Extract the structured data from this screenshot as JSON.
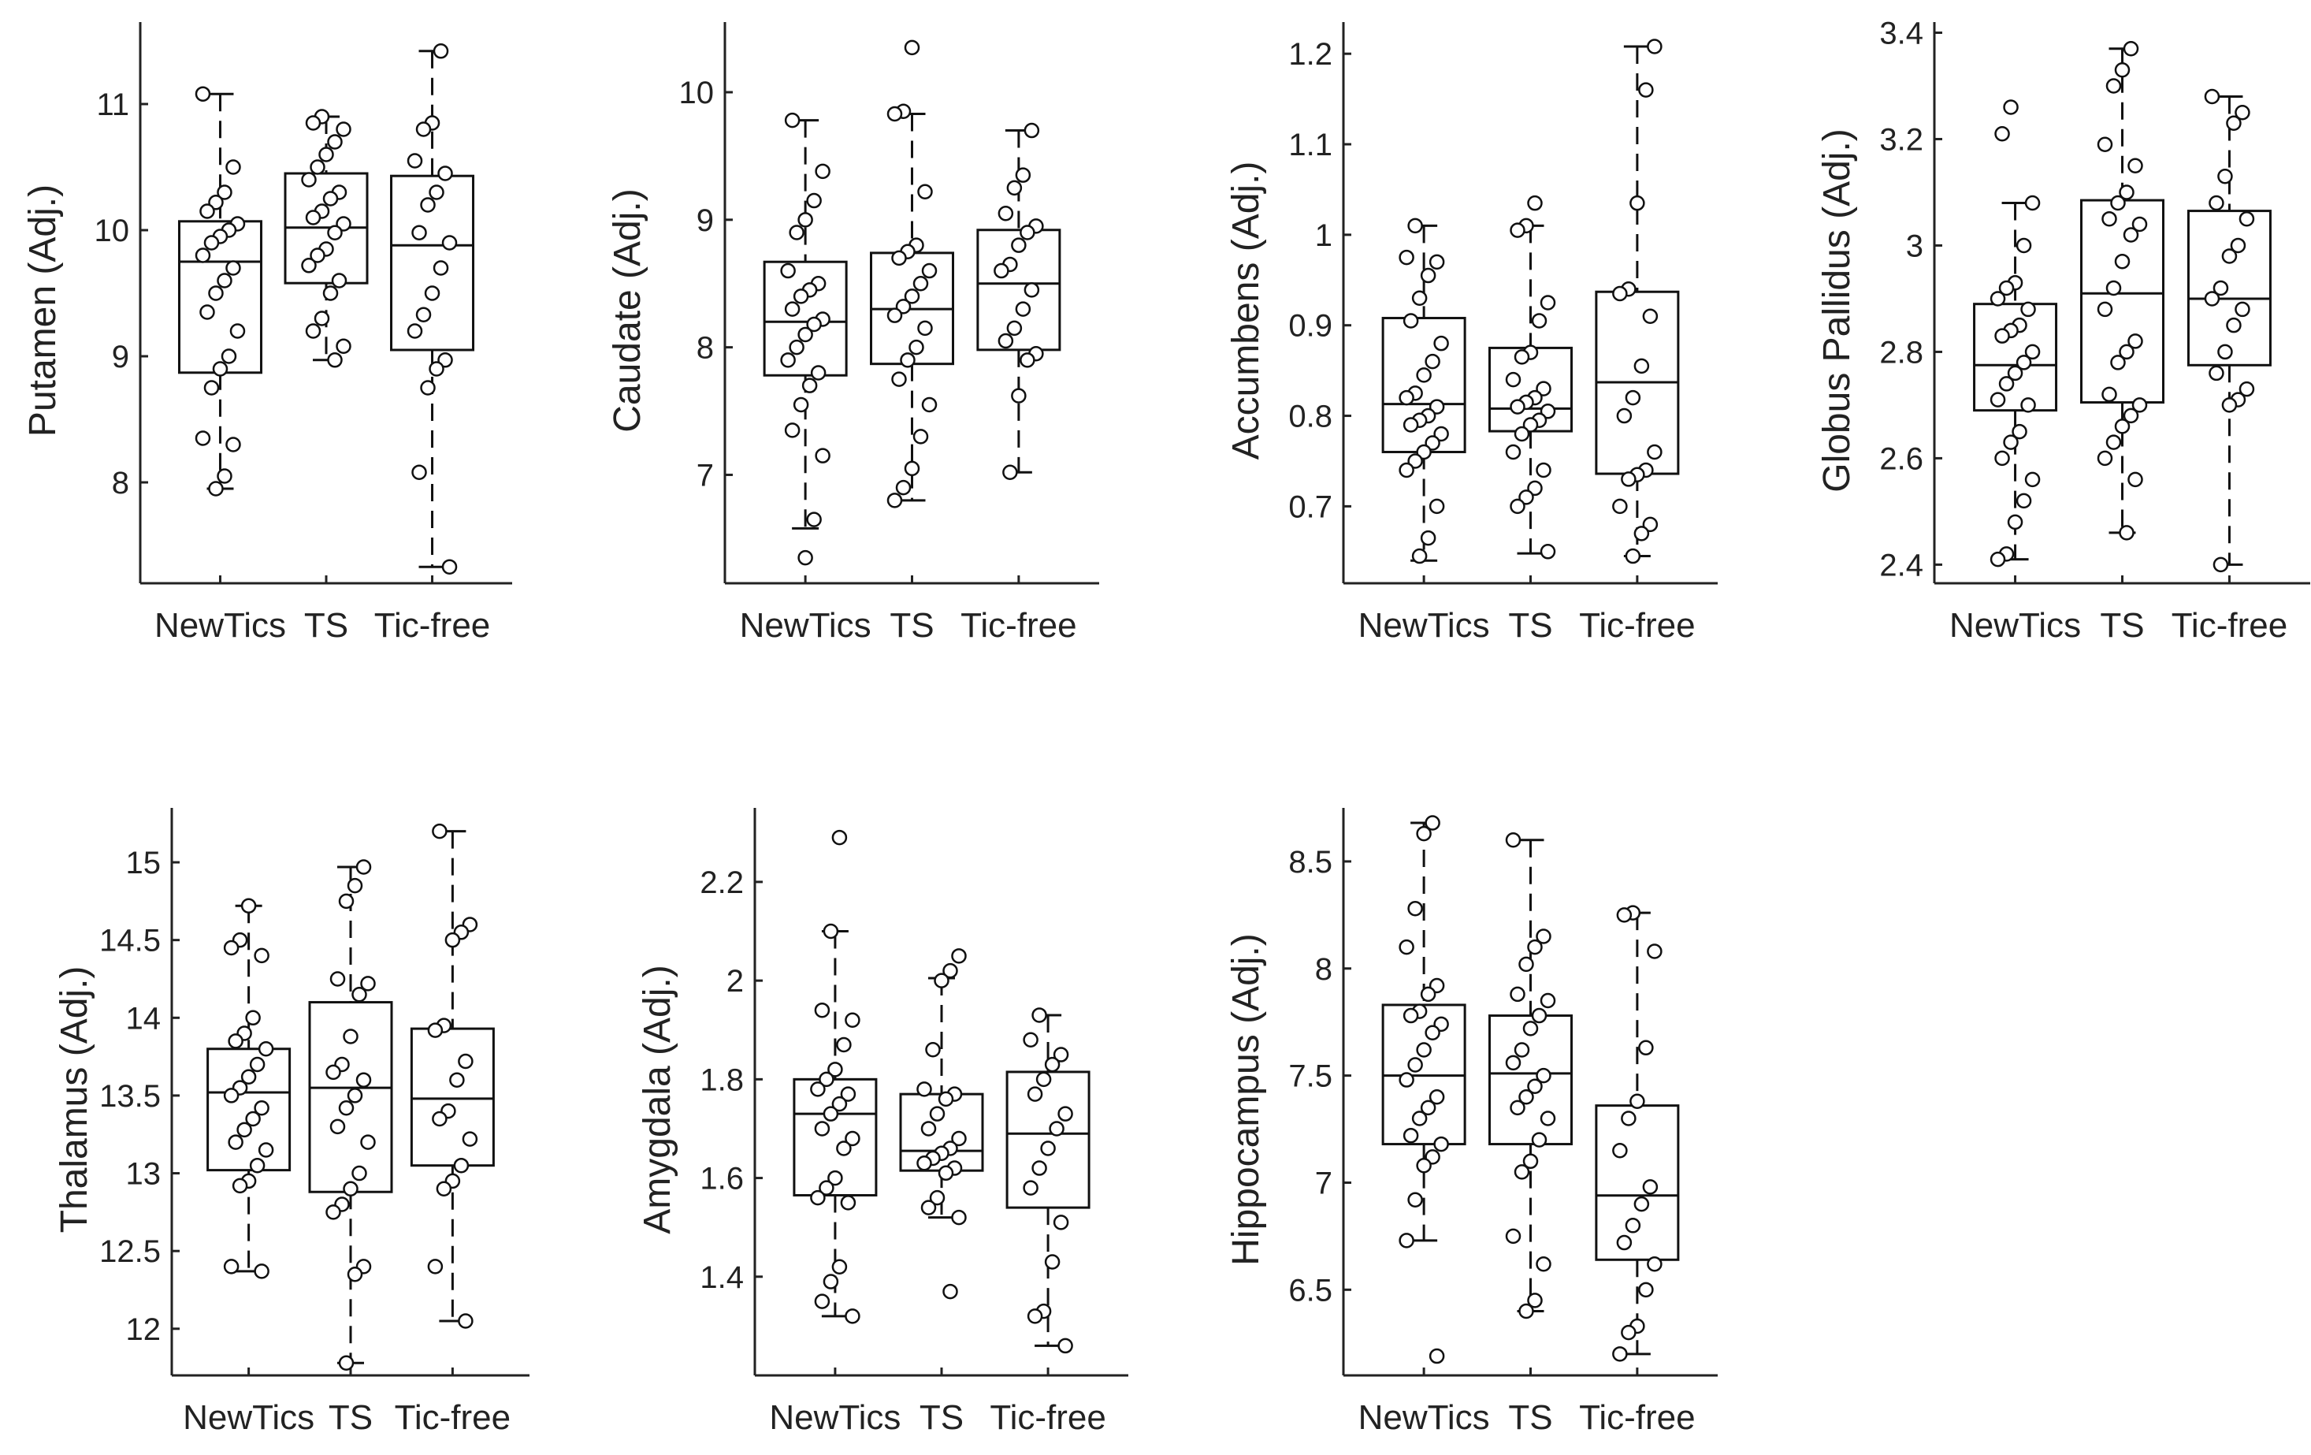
{
  "chart_data": [
    {
      "type": "box",
      "ylabel": "Putamen (Adj.)",
      "categories": [
        "NewTics",
        "TS",
        "Tic-free"
      ],
      "yticks": [
        8,
        9,
        10,
        11
      ],
      "ylim": [
        7.2,
        11.65
      ],
      "boxes": [
        {
          "group": "NewTics",
          "whisker_low": 7.95,
          "q1": 8.87,
          "median": 9.75,
          "q3": 10.07,
          "whisker_high": 11.08,
          "points": [
            11.08,
            10.5,
            10.3,
            10.22,
            10.15,
            10.05,
            10.0,
            9.95,
            9.9,
            9.8,
            9.7,
            9.6,
            9.5,
            9.35,
            9.2,
            9.0,
            8.9,
            8.75,
            8.35,
            8.3,
            8.05,
            7.95
          ]
        },
        {
          "group": "TS",
          "whisker_low": 8.97,
          "q1": 9.58,
          "median": 10.02,
          "q3": 10.45,
          "whisker_high": 10.9,
          "points": [
            10.9,
            10.85,
            10.8,
            10.7,
            10.6,
            10.5,
            10.4,
            10.3,
            10.25,
            10.15,
            10.1,
            10.05,
            9.98,
            9.85,
            9.8,
            9.72,
            9.6,
            9.5,
            9.3,
            9.2,
            9.08,
            8.97
          ]
        },
        {
          "group": "Tic-free",
          "whisker_low": 7.33,
          "q1": 9.05,
          "median": 9.88,
          "q3": 10.43,
          "whisker_high": 11.42,
          "points": [
            11.42,
            10.85,
            10.8,
            10.55,
            10.45,
            10.3,
            10.2,
            9.98,
            9.9,
            9.7,
            9.5,
            9.33,
            9.2,
            8.97,
            8.9,
            8.75,
            8.08,
            7.33
          ]
        }
      ]
    },
    {
      "type": "box",
      "ylabel": "Caudate (Adj.)",
      "categories": [
        "NewTics",
        "TS",
        "Tic-free"
      ],
      "yticks": [
        7,
        8,
        9,
        10
      ],
      "ylim": [
        6.15,
        10.55
      ],
      "boxes": [
        {
          "group": "NewTics",
          "whisker_low": 6.58,
          "q1": 7.78,
          "median": 8.2,
          "q3": 8.67,
          "whisker_high": 9.78,
          "points": [
            9.78,
            9.38,
            9.15,
            9.0,
            8.9,
            8.6,
            8.5,
            8.45,
            8.4,
            8.3,
            8.22,
            8.18,
            8.1,
            8.0,
            7.9,
            7.8,
            7.7,
            7.55,
            7.35,
            7.15,
            6.65,
            6.35
          ]
        },
        {
          "group": "TS",
          "whisker_low": 6.8,
          "q1": 7.87,
          "median": 8.3,
          "q3": 8.74,
          "whisker_high": 9.83,
          "points": [
            10.35,
            9.85,
            9.83,
            9.22,
            8.8,
            8.75,
            8.7,
            8.6,
            8.5,
            8.4,
            8.32,
            8.25,
            8.15,
            8.0,
            7.9,
            7.75,
            7.55,
            7.3,
            7.05,
            6.9,
            6.8
          ]
        },
        {
          "group": "Tic-free",
          "whisker_low": 7.02,
          "q1": 7.98,
          "median": 8.5,
          "q3": 8.92,
          "whisker_high": 9.7,
          "points": [
            9.7,
            9.35,
            9.25,
            9.05,
            8.95,
            8.9,
            8.8,
            8.65,
            8.6,
            8.45,
            8.3,
            8.15,
            8.05,
            7.95,
            7.9,
            7.62,
            7.02
          ]
        }
      ]
    },
    {
      "type": "box",
      "ylabel": "Accumbens (Adj.)",
      "categories": [
        "NewTics",
        "TS",
        "Tic-free"
      ],
      "yticks": [
        0.7,
        0.8,
        0.9,
        1,
        1.1,
        1.2
      ],
      "ylim": [
        0.615,
        1.235
      ],
      "boxes": [
        {
          "group": "NewTics",
          "whisker_low": 0.64,
          "q1": 0.76,
          "median": 0.813,
          "q3": 0.908,
          "whisker_high": 1.01,
          "points": [
            1.01,
            0.975,
            0.97,
            0.955,
            0.93,
            0.905,
            0.88,
            0.86,
            0.845,
            0.825,
            0.82,
            0.81,
            0.8,
            0.795,
            0.79,
            0.78,
            0.77,
            0.76,
            0.75,
            0.74,
            0.7,
            0.665,
            0.645
          ]
        },
        {
          "group": "TS",
          "whisker_low": 0.648,
          "q1": 0.783,
          "median": 0.808,
          "q3": 0.875,
          "whisker_high": 1.01,
          "points": [
            1.035,
            1.01,
            1.005,
            0.925,
            0.905,
            0.87,
            0.865,
            0.84,
            0.83,
            0.82,
            0.815,
            0.81,
            0.805,
            0.795,
            0.79,
            0.78,
            0.76,
            0.74,
            0.72,
            0.71,
            0.7,
            0.65
          ]
        },
        {
          "group": "Tic-free",
          "whisker_low": 0.645,
          "q1": 0.736,
          "median": 0.837,
          "q3": 0.937,
          "whisker_high": 1.208,
          "points": [
            1.208,
            1.16,
            1.035,
            0.94,
            0.935,
            0.91,
            0.855,
            0.82,
            0.8,
            0.76,
            0.74,
            0.735,
            0.73,
            0.7,
            0.68,
            0.67,
            0.645
          ]
        }
      ]
    },
    {
      "type": "box",
      "ylabel": "Globus Pallidus (Adj.)",
      "categories": [
        "NewTics",
        "TS",
        "Tic-free"
      ],
      "yticks": [
        2.4,
        2.6,
        2.8,
        3,
        3.2,
        3.4
      ],
      "ylim": [
        2.365,
        3.42
      ],
      "boxes": [
        {
          "group": "NewTics",
          "whisker_low": 2.41,
          "q1": 2.69,
          "median": 2.775,
          "q3": 2.89,
          "whisker_high": 3.08,
          "points": [
            3.26,
            3.21,
            3.08,
            3.0,
            2.93,
            2.92,
            2.9,
            2.88,
            2.85,
            2.84,
            2.83,
            2.8,
            2.78,
            2.76,
            2.74,
            2.71,
            2.7,
            2.65,
            2.63,
            2.6,
            2.56,
            2.52,
            2.48,
            2.42,
            2.41
          ]
        },
        {
          "group": "TS",
          "whisker_low": 2.46,
          "q1": 2.705,
          "median": 2.91,
          "q3": 3.085,
          "whisker_high": 3.37,
          "points": [
            3.37,
            3.33,
            3.3,
            3.19,
            3.15,
            3.1,
            3.08,
            3.05,
            3.04,
            3.02,
            2.97,
            2.92,
            2.88,
            2.82,
            2.8,
            2.78,
            2.72,
            2.7,
            2.68,
            2.66,
            2.63,
            2.6,
            2.56,
            2.46
          ]
        },
        {
          "group": "Tic-free",
          "whisker_low": 2.4,
          "q1": 2.775,
          "median": 2.9,
          "q3": 3.065,
          "whisker_high": 3.28,
          "points": [
            3.28,
            3.25,
            3.23,
            3.13,
            3.08,
            3.05,
            3.0,
            2.98,
            2.92,
            2.9,
            2.88,
            2.85,
            2.8,
            2.76,
            2.73,
            2.71,
            2.7,
            2.4
          ]
        }
      ]
    },
    {
      "type": "box",
      "ylabel": "Thalamus (Adj.)",
      "categories": [
        "NewTics",
        "TS",
        "Tic-free"
      ],
      "yticks": [
        12,
        12.5,
        13,
        13.5,
        14,
        14.5,
        15
      ],
      "ylim": [
        11.7,
        15.35
      ],
      "boxes": [
        {
          "group": "NewTics",
          "whisker_low": 12.37,
          "q1": 13.02,
          "median": 13.52,
          "q3": 13.8,
          "whisker_high": 14.72,
          "points": [
            14.72,
            14.5,
            14.45,
            14.4,
            14.0,
            13.9,
            13.85,
            13.8,
            13.7,
            13.62,
            13.55,
            13.5,
            13.42,
            13.35,
            13.28,
            13.2,
            13.15,
            13.05,
            12.95,
            12.92,
            12.4,
            12.37
          ]
        },
        {
          "group": "TS",
          "whisker_low": 11.78,
          "q1": 12.88,
          "median": 13.55,
          "q3": 14.1,
          "whisker_high": 14.97,
          "points": [
            14.97,
            14.85,
            14.75,
            14.25,
            14.22,
            14.15,
            13.88,
            13.7,
            13.65,
            13.6,
            13.5,
            13.42,
            13.3,
            13.2,
            13.0,
            12.9,
            12.8,
            12.75,
            12.4,
            12.35,
            11.78
          ]
        },
        {
          "group": "Tic-free",
          "whisker_low": 12.05,
          "q1": 13.05,
          "median": 13.48,
          "q3": 13.93,
          "whisker_high": 15.2,
          "points": [
            15.2,
            14.6,
            14.55,
            14.5,
            13.95,
            13.92,
            13.72,
            13.6,
            13.4,
            13.35,
            13.22,
            13.05,
            12.95,
            12.9,
            12.4,
            12.05
          ]
        }
      ]
    },
    {
      "type": "box",
      "ylabel": "Amygdala (Adj.)",
      "categories": [
        "NewTics",
        "TS",
        "Tic-free"
      ],
      "yticks": [
        1.4,
        1.6,
        1.8,
        2,
        2.2
      ],
      "ylim": [
        1.2,
        2.35
      ],
      "boxes": [
        {
          "group": "NewTics",
          "whisker_low": 1.32,
          "q1": 1.565,
          "median": 1.73,
          "q3": 1.8,
          "whisker_high": 2.1,
          "points": [
            2.29,
            2.1,
            1.94,
            1.92,
            1.87,
            1.82,
            1.8,
            1.78,
            1.77,
            1.75,
            1.73,
            1.7,
            1.68,
            1.66,
            1.6,
            1.58,
            1.56,
            1.55,
            1.42,
            1.39,
            1.35,
            1.32
          ]
        },
        {
          "group": "TS",
          "whisker_low": 1.52,
          "q1": 1.615,
          "median": 1.655,
          "q3": 1.77,
          "whisker_high": 2.005,
          "points": [
            2.05,
            2.02,
            2.0,
            1.86,
            1.78,
            1.77,
            1.76,
            1.73,
            1.7,
            1.68,
            1.66,
            1.65,
            1.64,
            1.63,
            1.62,
            1.61,
            1.56,
            1.54,
            1.52,
            1.37
          ]
        },
        {
          "group": "Tic-free",
          "whisker_low": 1.26,
          "q1": 1.54,
          "median": 1.69,
          "q3": 1.815,
          "whisker_high": 1.93,
          "points": [
            1.93,
            1.88,
            1.85,
            1.83,
            1.8,
            1.77,
            1.73,
            1.7,
            1.66,
            1.62,
            1.58,
            1.51,
            1.43,
            1.33,
            1.32,
            1.26
          ]
        }
      ]
    },
    {
      "type": "box",
      "ylabel": "Hippocampus (Adj.)",
      "categories": [
        "NewTics",
        "TS",
        "Tic-free"
      ],
      "yticks": [
        6.5,
        7,
        7.5,
        8,
        8.5
      ],
      "ylim": [
        6.1,
        8.75
      ],
      "boxes": [
        {
          "group": "NewTics",
          "whisker_low": 6.73,
          "q1": 7.18,
          "median": 7.5,
          "q3": 7.83,
          "whisker_high": 8.68,
          "points": [
            8.68,
            8.63,
            8.28,
            8.1,
            7.92,
            7.88,
            7.8,
            7.78,
            7.74,
            7.7,
            7.62,
            7.55,
            7.48,
            7.4,
            7.35,
            7.3,
            7.22,
            7.18,
            7.12,
            7.08,
            6.92,
            6.73,
            6.19
          ]
        },
        {
          "group": "TS",
          "whisker_low": 6.4,
          "q1": 7.18,
          "median": 7.51,
          "q3": 7.78,
          "whisker_high": 8.6,
          "points": [
            8.6,
            8.15,
            8.1,
            8.02,
            7.88,
            7.85,
            7.78,
            7.72,
            7.62,
            7.56,
            7.5,
            7.45,
            7.4,
            7.35,
            7.3,
            7.2,
            7.1,
            7.05,
            6.75,
            6.62,
            6.45,
            6.4
          ]
        },
        {
          "group": "Tic-free",
          "whisker_low": 6.2,
          "q1": 6.64,
          "median": 6.94,
          "q3": 7.36,
          "whisker_high": 8.26,
          "points": [
            8.26,
            8.25,
            8.08,
            7.63,
            7.38,
            7.3,
            7.15,
            6.98,
            6.9,
            6.8,
            6.72,
            6.62,
            6.5,
            6.33,
            6.3,
            6.2
          ]
        }
      ]
    }
  ]
}
